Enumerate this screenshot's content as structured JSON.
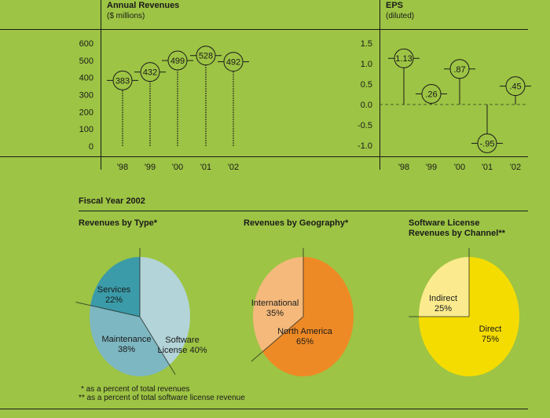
{
  "colors": {
    "background": "#9dc444",
    "ink": "#1a1a1a"
  },
  "chart_data": [
    {
      "type": "lollipop",
      "title": "Annual Revenues",
      "subtitle": "($ millions)",
      "categories": [
        "'98",
        "'99",
        "'00",
        "'01",
        "'02"
      ],
      "values": [
        383,
        432,
        499,
        528,
        492
      ],
      "value_labels": [
        "383",
        "432",
        "499",
        "528",
        "492"
      ],
      "yticks": [
        "600",
        "500",
        "400",
        "300",
        "200",
        "100",
        "0"
      ],
      "ylim": [
        0,
        600
      ]
    },
    {
      "type": "lollipop",
      "title": "EPS",
      "subtitle": "(diluted)",
      "categories": [
        "'98",
        "'99",
        "'00",
        "'01",
        "'02"
      ],
      "values": [
        1.13,
        0.26,
        0.87,
        -0.95,
        0.45
      ],
      "value_labels": [
        "1.13",
        ".26",
        ".87",
        "-.95",
        ".45"
      ],
      "yticks": [
        "1.5",
        "1.0",
        "0.5",
        "0.0",
        "-0.5",
        "-1.0"
      ],
      "ylim": [
        -1.0,
        1.5
      ]
    },
    {
      "type": "pie",
      "title": "Revenues by Type*",
      "slices": [
        {
          "label": "Software",
          "label2": "License 40%",
          "value": 40,
          "color": "#b3d4d8"
        },
        {
          "label": "Maintenance",
          "label2": "38%",
          "value": 38,
          "color": "#7db7c2"
        },
        {
          "label": "Services",
          "label2": "22%",
          "value": 22,
          "color": "#3b9ba8"
        }
      ]
    },
    {
      "type": "pie",
      "title": "Revenues by Geography*",
      "slices": [
        {
          "label": "North America",
          "label2": "65%",
          "value": 65,
          "color": "#ee8a25"
        },
        {
          "label": "International",
          "label2": "35%",
          "value": 35,
          "color": "#f4b97b"
        }
      ]
    },
    {
      "type": "pie",
      "title": "Software License",
      "title2": "Revenues by Channel**",
      "slices": [
        {
          "label": "Direct",
          "label2": "75%",
          "value": 75,
          "color": "#f5dc00"
        },
        {
          "label": "Indirect",
          "label2": "25%",
          "value": 25,
          "color": "#fbeb8e"
        }
      ]
    }
  ],
  "section_title": "Fiscal Year 2002",
  "footnotes": [
    "* as a percent of total revenues",
    "** as a percent of total software license revenue"
  ]
}
